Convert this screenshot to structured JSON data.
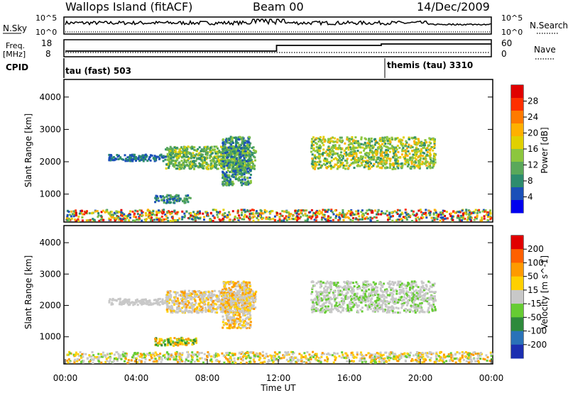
{
  "header": {
    "station": "Wallops Island (fitACF)",
    "beam": "Beam 00",
    "date": "14/Dec/2009"
  },
  "chart_data": [
    {
      "type": "line",
      "panel": "noise",
      "left_label": "N.Sky",
      "right_label": "N.Search",
      "left_ticks": [
        "10^5",
        "10^0"
      ],
      "right_ticks": [
        "10^5",
        "10^0"
      ],
      "series": [
        {
          "style": "solid",
          "level": 0.7
        },
        {
          "style": "dotted"
        }
      ]
    },
    {
      "type": "line",
      "panel": "frequency",
      "left_label": "Freq.",
      "left_unit": "[MHz]",
      "right_label": "Nave",
      "left_ticks": [
        "18",
        "8"
      ],
      "right_ticks": [
        "60",
        "0"
      ],
      "freq_steps": [
        {
          "from": 0.0,
          "to": 11.9,
          "value": 11
        },
        {
          "from": 11.9,
          "to": 17.8,
          "value": 15
        },
        {
          "from": 17.8,
          "to": 24.0,
          "value": 16
        }
      ],
      "nave_level": 11
    },
    {
      "type": "table",
      "panel": "cpid",
      "label": "CPID",
      "modes": [
        {
          "name": "tau (fast) 503",
          "start": 0.0
        },
        {
          "name": "themis (tau) 3310",
          "start": 17.9
        }
      ]
    },
    {
      "type": "heatmap",
      "panel": "power",
      "ylabel": "Slant Range [km]",
      "yticks": [
        1000,
        2000,
        3000,
        4000
      ],
      "ylim": [
        180,
        4500
      ],
      "colorbar_label": "Power [dB]",
      "colorbar_ticks": [
        "28",
        "24",
        "20",
        "16",
        "12",
        "8",
        "4"
      ],
      "colors": [
        "#0000ee",
        "#1a4fb8",
        "#2d8c6e",
        "#5aa85a",
        "#8cc63e",
        "#e0d000",
        "#ffb000",
        "#ff7a00",
        "#ff3000",
        "#e00000"
      ],
      "regions": [
        {
          "t0": 5.6,
          "t1": 10.7,
          "r0": 1800,
          "r1": 2500,
          "values": [
            2,
            3,
            4,
            5,
            3
          ]
        },
        {
          "t0": 2.4,
          "t1": 5.6,
          "r0": 2050,
          "r1": 2250,
          "values": [
            1,
            2
          ]
        },
        {
          "t0": 8.8,
          "t1": 10.4,
          "r0": 1300,
          "r1": 2800,
          "values": [
            1,
            2,
            3,
            4
          ]
        },
        {
          "t0": 13.8,
          "t1": 20.8,
          "r0": 1800,
          "r1": 2800,
          "values": [
            2,
            4,
            5,
            6,
            4,
            3
          ]
        },
        {
          "t0": 5.0,
          "t1": 7.0,
          "r0": 750,
          "r1": 1000,
          "values": [
            1,
            2,
            3
          ]
        },
        {
          "t0": 0.0,
          "t1": 24.0,
          "r0": 200,
          "r1": 550,
          "values": [
            1,
            2,
            3,
            4,
            5,
            6,
            8,
            9
          ]
        }
      ]
    },
    {
      "type": "heatmap",
      "panel": "velocity",
      "ylabel": "Slant Range [km]",
      "yticks": [
        1000,
        2000,
        3000,
        4000
      ],
      "ylim": [
        180,
        4500
      ],
      "xticks": [
        "00:00",
        "04:00",
        "08:00",
        "12:00",
        "16:00",
        "20:00",
        "00:00"
      ],
      "xlabel": "Time UT",
      "colorbar_label": "Velocity [m s^-1]",
      "colorbar_ticks": [
        "200",
        "100",
        "50",
        "15",
        "-15",
        "-50",
        "-100",
        "-200"
      ],
      "colors": [
        "#1c2fb0",
        "#2a72b8",
        "#2e8a3c",
        "#66cc33",
        "#c8c8c8",
        "#ffd000",
        "#ff9a00",
        "#ff6000",
        "#e00000"
      ],
      "regions": [
        {
          "t0": 5.6,
          "t1": 10.7,
          "r0": 1800,
          "r1": 2500,
          "values": [
            4,
            4,
            5,
            6,
            4
          ]
        },
        {
          "t0": 2.4,
          "t1": 5.6,
          "r0": 2050,
          "r1": 2250,
          "values": [
            4
          ]
        },
        {
          "t0": 8.8,
          "t1": 10.4,
          "r0": 1300,
          "r1": 2800,
          "values": [
            4,
            4,
            6,
            5
          ]
        },
        {
          "t0": 13.8,
          "t1": 20.8,
          "r0": 1800,
          "r1": 2800,
          "values": [
            4,
            4,
            4,
            3
          ]
        },
        {
          "t0": 5.0,
          "t1": 7.4,
          "r0": 750,
          "r1": 1000,
          "values": [
            3,
            2,
            5,
            6
          ]
        },
        {
          "t0": 0.0,
          "t1": 24.0,
          "r0": 200,
          "r1": 550,
          "values": [
            4,
            5,
            6,
            3,
            4
          ]
        }
      ]
    }
  ]
}
